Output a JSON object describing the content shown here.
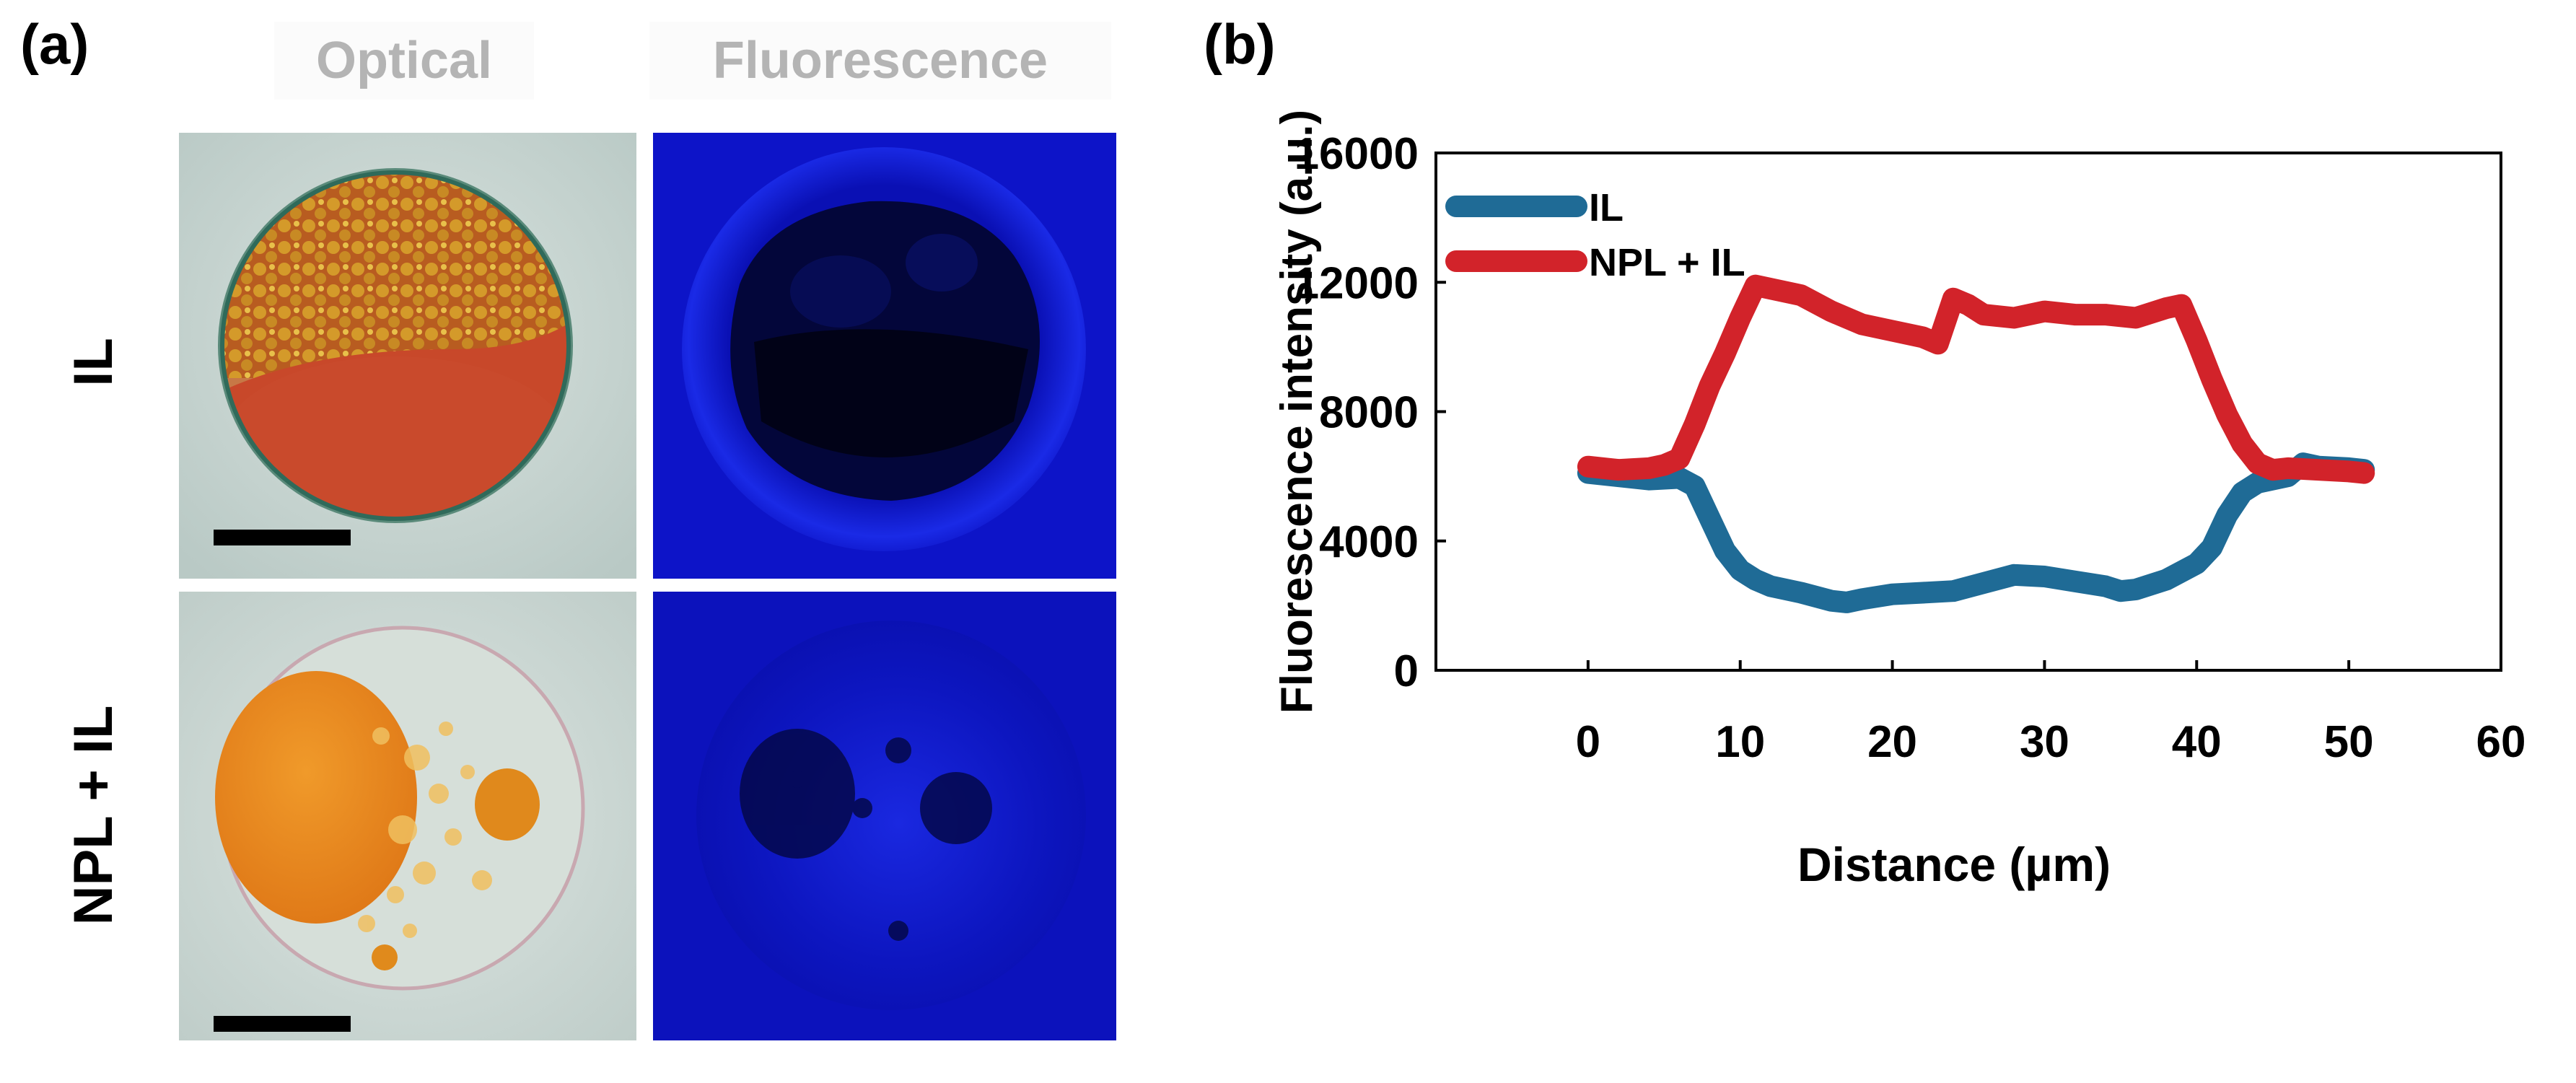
{
  "panel_a": {
    "label": "(a)",
    "columns": [
      "Optical",
      "Fluorescence"
    ],
    "rows": [
      "IL",
      "NPL + IL"
    ]
  },
  "panel_b": {
    "label": "(b)"
  },
  "colors": {
    "il": "#1f6b96",
    "npl_il": "#d2232a",
    "fluor_bg": "#0d14c8",
    "optical_bg": "#c9d6d2"
  },
  "chart_data": {
    "type": "line",
    "title": "",
    "xlabel": "Distance (µm)",
    "ylabel": "Fluorescence intensity (a.u.)",
    "xlim": [
      -10,
      60
    ],
    "ylim": [
      0,
      16000
    ],
    "xticks": [
      0,
      10,
      20,
      30,
      40,
      50,
      60
    ],
    "yticks": [
      0,
      4000,
      8000,
      12000,
      16000
    ],
    "legend_position": "top-left",
    "series": [
      {
        "name": "IL",
        "color": "#1f6b96",
        "x": [
          0,
          2,
          4,
          6,
          7,
          8,
          9,
          10,
          11,
          12,
          14,
          16,
          17,
          18,
          20,
          22,
          24,
          26,
          28,
          30,
          32,
          34,
          35,
          36,
          38,
          40,
          41,
          42,
          43,
          44,
          46,
          47,
          48,
          50,
          51
        ],
        "y": [
          6100,
          6000,
          5900,
          5950,
          5700,
          4700,
          3700,
          3100,
          2800,
          2600,
          2400,
          2150,
          2100,
          2200,
          2350,
          2400,
          2450,
          2700,
          2950,
          2900,
          2750,
          2600,
          2450,
          2500,
          2800,
          3300,
          3800,
          4800,
          5500,
          5800,
          6000,
          6400,
          6300,
          6250,
          6200
        ]
      },
      {
        "name": "NPL + IL",
        "color": "#d2232a",
        "x": [
          0,
          2,
          4,
          5,
          6,
          7,
          8,
          9,
          10,
          11,
          12,
          13,
          14,
          16,
          18,
          20,
          22,
          23,
          24,
          25,
          26,
          28,
          30,
          32,
          34,
          36,
          38,
          39,
          40,
          41,
          42,
          43,
          44,
          45,
          46,
          48,
          50,
          51
        ],
        "y": [
          6300,
          6200,
          6250,
          6350,
          6550,
          7600,
          8800,
          9800,
          10900,
          11900,
          11800,
          11700,
          11600,
          11100,
          10700,
          10500,
          10300,
          10100,
          11500,
          11300,
          11000,
          10900,
          11100,
          11000,
          11000,
          10900,
          11200,
          11300,
          10200,
          9000,
          7900,
          7000,
          6400,
          6200,
          6250,
          6200,
          6150,
          6100
        ]
      }
    ]
  }
}
